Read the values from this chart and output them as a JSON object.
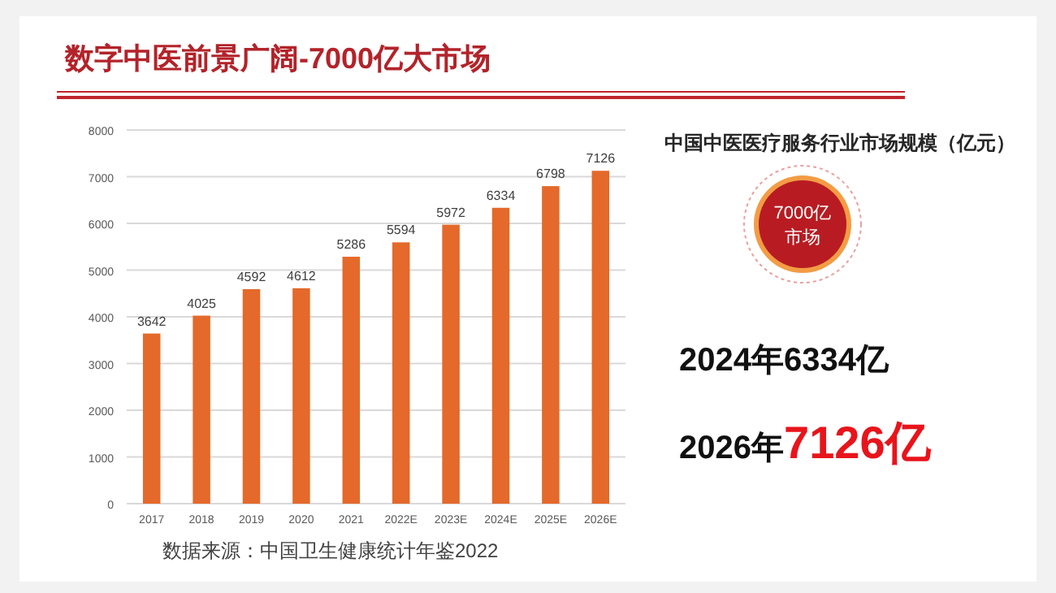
{
  "chart_data": {
    "type": "bar",
    "title": "数字中医前景广阔-7000亿大市场",
    "subtitle": "中国中医医疗服务行业市场规模（亿元）",
    "categories": [
      "2017",
      "2018",
      "2019",
      "2020",
      "2021",
      "2022E",
      "2023E",
      "2024E",
      "2025E",
      "2026E"
    ],
    "values": [
      3642,
      4025,
      4592,
      4612,
      5286,
      5594,
      5972,
      6334,
      6798,
      7126
    ],
    "color": "#e4692a",
    "ylim": [
      0,
      8000
    ],
    "yticks": [
      0,
      1000,
      2000,
      3000,
      4000,
      5000,
      6000,
      7000,
      8000
    ],
    "grid": "y",
    "data_labels": true,
    "annotations": [
      "7000亿",
      "市场",
      "2024年6334亿",
      "2026年7126亿",
      "数据来源：中国卫生健康统计年鉴2022"
    ]
  }
}
